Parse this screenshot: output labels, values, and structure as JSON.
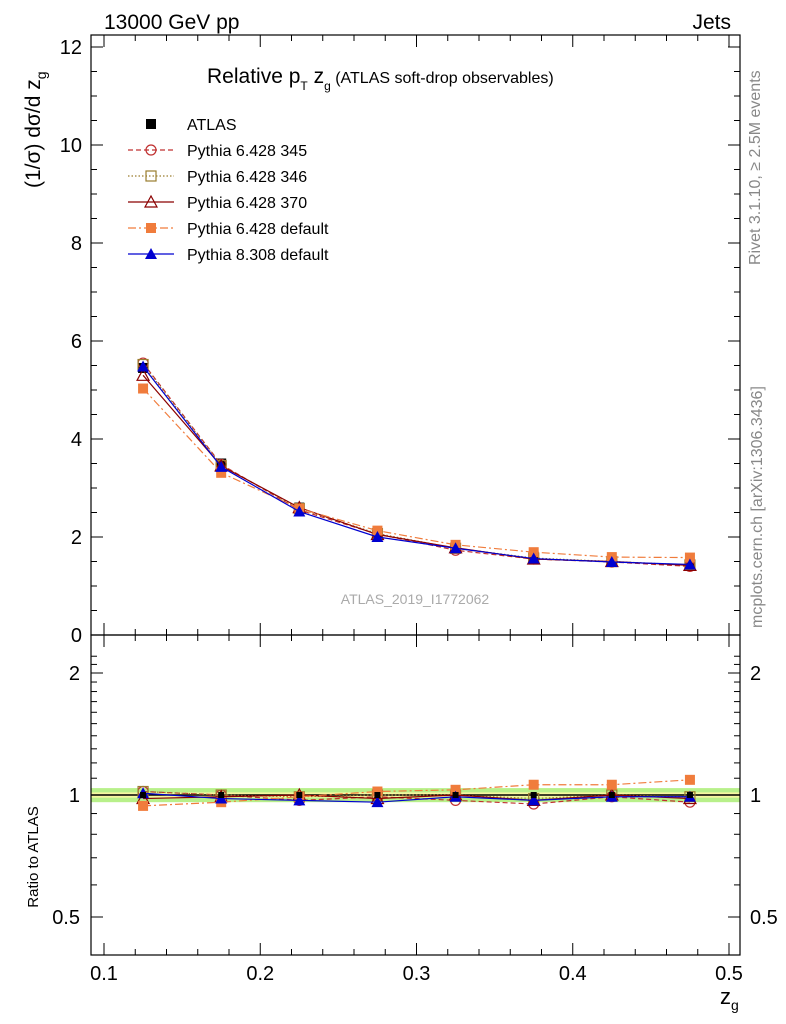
{
  "header": {
    "left": "13000 GeV pp",
    "right": "Jets"
  },
  "side_text": {
    "rivet": "Rivet 3.1.10, ≥ 2.5M events",
    "mcplots": "mcplots.cern.ch [arXiv:1306.3436]"
  },
  "chart_data": {
    "type": "line",
    "title_parts": {
      "a": "Relative p",
      "sub1": "T",
      "b": " z",
      "sub2": "g",
      "c": " (ATLAS soft-drop observables)"
    },
    "ylabel_parts": {
      "a": "(1/σ) dσ/d z",
      "sub": "g"
    },
    "xlabel_parts": {
      "a": "z",
      "sub": "g"
    },
    "ratio_ylabel": "Ratio to ATLAS",
    "watermark": "ATLAS_2019_I1772062",
    "x": [
      0.125,
      0.175,
      0.225,
      0.275,
      0.325,
      0.375,
      0.425,
      0.475
    ],
    "xlim": [
      0.1,
      0.5
    ],
    "ylim": [
      0,
      12
    ],
    "ratio_ylim": [
      0.4,
      2.3
    ],
    "x_ticks": [
      "0.1",
      "0.2",
      "0.3",
      "0.4",
      "0.5"
    ],
    "y_ticks": [
      "0",
      "2",
      "4",
      "6",
      "8",
      "10",
      "12"
    ],
    "ratio_ticks": [
      "0.5",
      "1",
      "2"
    ],
    "legend_position": "top-left",
    "series": [
      {
        "name": "ATLAS",
        "color": "#000000",
        "marker": "square-filled",
        "line": "none",
        "values": [
          5.45,
          3.5,
          2.6,
          2.08,
          1.78,
          1.6,
          1.5,
          1.45
        ]
      },
      {
        "name": "Pythia 6.428 345",
        "color": "#c03030",
        "marker": "circle-open",
        "line": "dashed",
        "values": [
          5.55,
          3.48,
          2.55,
          2.06,
          1.73,
          1.55,
          1.49,
          1.4
        ],
        "ratio": [
          1.02,
          1.0,
          0.97,
          0.99,
          0.97,
          0.95,
          0.99,
          0.96
        ]
      },
      {
        "name": "Pythia 6.428 346",
        "color": "#9a7d2e",
        "marker": "square-open",
        "line": "dotted",
        "values": [
          5.52,
          3.46,
          2.58,
          2.07,
          1.77,
          1.57,
          1.5,
          1.43
        ],
        "ratio": [
          1.02,
          1.0,
          0.99,
          1.0,
          1.0,
          0.98,
          1.0,
          0.99
        ]
      },
      {
        "name": "Pythia 6.428 370",
        "color": "#8b0000",
        "marker": "triangle-open",
        "line": "solid",
        "values": [
          5.3,
          3.45,
          2.6,
          2.05,
          1.78,
          1.55,
          1.5,
          1.42
        ],
        "ratio": [
          0.98,
          0.99,
          1.0,
          0.98,
          1.0,
          0.97,
          1.0,
          0.98
        ]
      },
      {
        "name": "Pythia 6.428 default",
        "color": "#f07c3c",
        "marker": "square-filled",
        "line": "dashdot",
        "values": [
          5.03,
          3.31,
          2.58,
          2.13,
          1.84,
          1.69,
          1.59,
          1.58
        ],
        "ratio": [
          0.94,
          0.96,
          0.99,
          1.02,
          1.03,
          1.06,
          1.06,
          1.09
        ]
      },
      {
        "name": "Pythia 8.308 default",
        "color": "#0000d0",
        "marker": "triangle-filled",
        "line": "solid",
        "values": [
          5.48,
          3.43,
          2.52,
          2.0,
          1.77,
          1.56,
          1.49,
          1.44
        ],
        "ratio": [
          1.01,
          0.98,
          0.97,
          0.96,
          0.99,
          0.97,
          0.99,
          0.99
        ]
      }
    ]
  }
}
